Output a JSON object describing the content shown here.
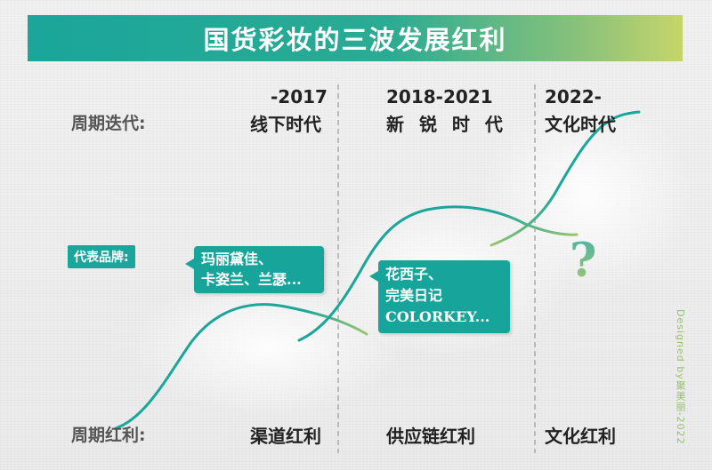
{
  "title": "国货彩妆的三波发展红利",
  "row_labels": {
    "iteration": "周期迭代:",
    "brands": "代表品牌:",
    "dividend": "周期红利:"
  },
  "eras": [
    {
      "years": "-2017",
      "name": "线下时代",
      "brands": [
        "玛丽黛佳、",
        "卡姿兰、兰瑟..."
      ],
      "dividend": "渠道红利"
    },
    {
      "years": "2018-2021",
      "name": "新 锐 时 代",
      "brands": [
        "花西子、",
        "完美日记",
        "COLORKEY..."
      ],
      "dividend": "供应链红利"
    },
    {
      "years": "2022-",
      "name": "文化时代",
      "brands_placeholder": "?",
      "dividend": "文化红利"
    }
  ],
  "credit": "Designed by聚美丽-2022",
  "colors": {
    "accent": "#1aa69b",
    "accent_light": "#c6d56a",
    "curve_end": "#9cc46c",
    "divider": "#9a9a9a"
  }
}
